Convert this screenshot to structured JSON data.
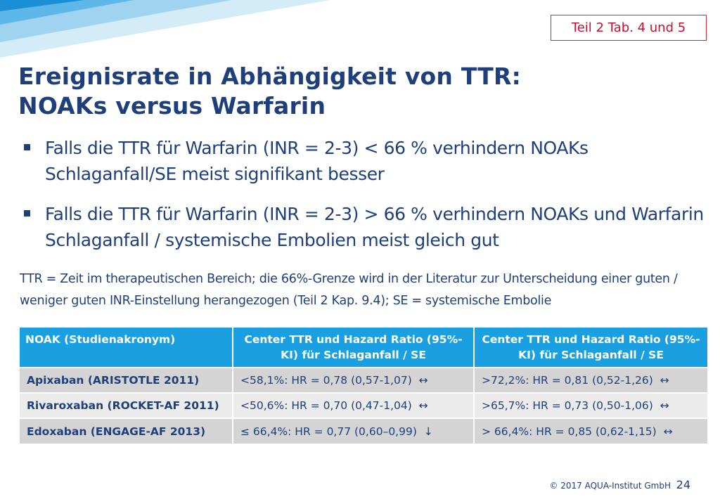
{
  "ref_label": "Teil 2 Tab. 4 und 5",
  "title": {
    "line1": "Ereignisrate in Abhängigkeit von TTR:",
    "line2": "NOAKs versus Warfarin"
  },
  "bullets": [
    "Falls die TTR für Warfarin (INR = 2-3) < 66 % verhindern NOAKs Schlaganfall/SE meist signifikant besser",
    "Falls die TTR für Warfarin (INR = 2-3) > 66 % verhindern NOAKs und Warfarin Schlaganfall / systemische Embolien meist gleich gut"
  ],
  "note": "TTR = Zeit im therapeutischen Bereich; die 66%-Grenze wird in der Literatur zur Unterscheidung einer guten / weniger guten INR-Einstellung herangezogen (Teil 2 Kap. 9.4); SE = systemische Embolie",
  "table": {
    "headers": [
      "NOAK (Studienakronym)",
      "Center TTR und Hazard Ratio (95%-KI) für Schlaganfall / SE",
      "Center TTR und Hazard Ratio (95%-KI) für Schlaganfall / SE"
    ],
    "rows": [
      {
        "drug": "Apixaban (ARISTOTLE 2011)",
        "low": "<58,1%:   HR = 0,78 (0,57-1,07)",
        "low_sym": "↔",
        "high": ">72,2%:   HR = 0,81 (0,52-1,26)",
        "high_sym": "↔"
      },
      {
        "drug": "Rivaroxaban (ROCKET-AF 2011)",
        "low": "<50,6%:   HR = 0,70 (0,47-1,04)",
        "low_sym": "↔",
        "high": ">65,7%:   HR = 0,73 (0,50-1,06)",
        "high_sym": "↔"
      },
      {
        "drug": "Edoxaban (ENGAGE-AF 2013)",
        "low": "≤ 66,4%:   HR = 0,77 (0,60–0,99)",
        "low_sym": "↓",
        "high": "> 66,4%:   HR = 0,85 (0,62-1,15)",
        "high_sym": "↔"
      }
    ]
  },
  "footer": "© 2017 AQUA-Institut GmbH",
  "page_number": "24",
  "colors": {
    "title": "#1f3f7a",
    "header_bg": "#1aa0e0",
    "ref_border": "#d9262c",
    "row_dark": "#d4d4d4",
    "row_light": "#ebebeb"
  }
}
